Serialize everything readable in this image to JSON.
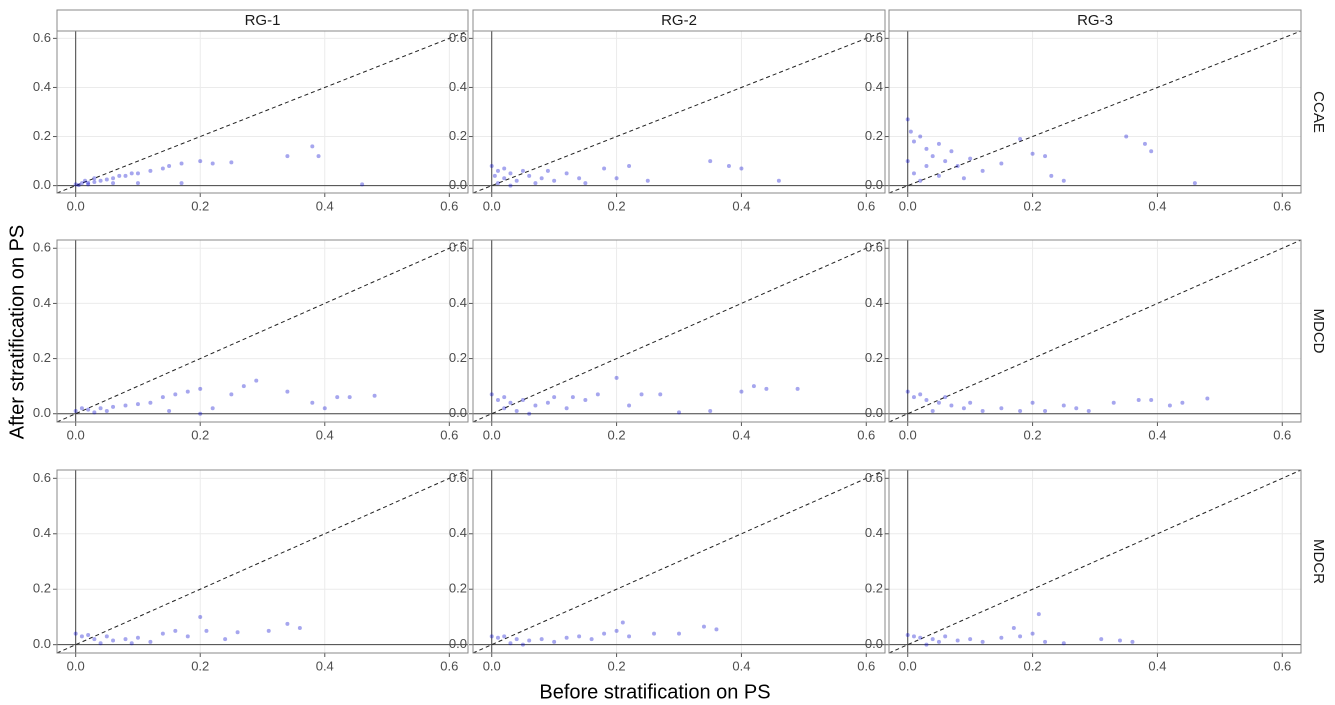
{
  "chart_data": {
    "type": "scatter",
    "xlabel": "Before stratification on PS",
    "ylabel": "After stratification on PS",
    "columns": [
      "RG-1",
      "RG-2",
      "RG-3"
    ],
    "rows": [
      "CCAE",
      "MDCD",
      "MDCR"
    ],
    "color": "#0000cd",
    "grid": true,
    "xlim": [
      -0.03,
      0.63
    ],
    "ylim": [
      -0.03,
      0.63
    ],
    "xticks": [
      {
        "value": 0,
        "label": "0.0"
      },
      0.2,
      0.4,
      0.6
    ],
    "yticks": [
      {
        "value": 0,
        "label": "0.0"
      },
      0.2,
      0.4,
      0.6
    ],
    "panels": [
      {
        "x": [
          0,
          0.01,
          0.02,
          0.03,
          0.04,
          0.05,
          0.06,
          0.07,
          0.08,
          0.09,
          0.1,
          0.12,
          0.14,
          0.15,
          0.17,
          0.2,
          0.22,
          0.25,
          0.34,
          0.38,
          0.39,
          0.46,
          0.1,
          0.17,
          0.005,
          0.02,
          0.06,
          0.03,
          0.015
        ],
        "y": [
          0.005,
          0.01,
          0.012,
          0.015,
          0.02,
          0.025,
          0.03,
          0.04,
          0.04,
          0.05,
          0.05,
          0.06,
          0.07,
          0.08,
          0.09,
          0.1,
          0.09,
          0.095,
          0.12,
          0.16,
          0.12,
          0.005,
          0.01,
          0.01,
          0.002,
          0.005,
          0.01,
          0.03,
          0.02
        ]
      },
      {
        "x": [
          0,
          0.01,
          0.02,
          0.03,
          0.05,
          0.06,
          0.04,
          0.01,
          0.08,
          0.1,
          0.12,
          0.15,
          0.18,
          0.2,
          0.22,
          0.25,
          0.35,
          0.38,
          0.4,
          0.46,
          0.03,
          0.07,
          0.09,
          0.14,
          0.02,
          0.005
        ],
        "y": [
          0.08,
          0.06,
          0.07,
          0.05,
          0.06,
          0.04,
          0.02,
          0.01,
          0.03,
          0.02,
          0.05,
          0.01,
          0.07,
          0.03,
          0.08,
          0.02,
          0.1,
          0.08,
          0.07,
          0.02,
          0,
          0.01,
          0.06,
          0.03,
          0.03,
          0.04
        ]
      },
      {
        "x": [
          0,
          0.005,
          0.01,
          0.02,
          0.03,
          0.04,
          0.05,
          0.06,
          0.07,
          0.08,
          0.1,
          0.12,
          0.15,
          0.18,
          0.2,
          0.22,
          0.23,
          0.25,
          0.35,
          0.38,
          0.39,
          0.46,
          0.01,
          0.02,
          0.03,
          0,
          0.05,
          0.09
        ],
        "y": [
          0.27,
          0.22,
          0.18,
          0.2,
          0.15,
          0.12,
          0.17,
          0.1,
          0.14,
          0.08,
          0.11,
          0.06,
          0.09,
          0.19,
          0.13,
          0.12,
          0.04,
          0.02,
          0.2,
          0.17,
          0.14,
          0.01,
          0.05,
          0.02,
          0.08,
          0.1,
          0.04,
          0.03
        ]
      },
      {
        "x": [
          0,
          0.01,
          0.02,
          0.04,
          0.06,
          0.08,
          0.1,
          0.12,
          0.14,
          0.16,
          0.18,
          0.2,
          0.22,
          0.25,
          0.27,
          0.29,
          0.34,
          0.38,
          0.4,
          0.42,
          0.44,
          0.48,
          0.03,
          0.05,
          0.15,
          0.2
        ],
        "y": [
          0.01,
          0.02,
          0.015,
          0.02,
          0.025,
          0.03,
          0.035,
          0.04,
          0.06,
          0.07,
          0.08,
          0.09,
          0.02,
          0.07,
          0.1,
          0.12,
          0.08,
          0.04,
          0.02,
          0.06,
          0.06,
          0.065,
          0.005,
          0.01,
          0.01,
          0
        ]
      },
      {
        "x": [
          0,
          0.01,
          0.02,
          0.03,
          0.05,
          0.07,
          0.09,
          0.1,
          0.12,
          0.15,
          0.17,
          0.2,
          0.22,
          0.24,
          0.27,
          0.3,
          0.35,
          0.4,
          0.42,
          0.44,
          0.49,
          0.04,
          0.02,
          0.06,
          0.13
        ],
        "y": [
          0.07,
          0.05,
          0.06,
          0.04,
          0.05,
          0.03,
          0.04,
          0.06,
          0.02,
          0.05,
          0.07,
          0.13,
          0.03,
          0.07,
          0.07,
          0.005,
          0.01,
          0.08,
          0.1,
          0.09,
          0.09,
          0.01,
          0.02,
          0,
          0.06
        ]
      },
      {
        "x": [
          0,
          0.01,
          0.02,
          0.03,
          0.05,
          0.07,
          0.09,
          0.1,
          0.12,
          0.15,
          0.18,
          0.2,
          0.22,
          0.25,
          0.27,
          0.29,
          0.33,
          0.37,
          0.39,
          0.42,
          0.44,
          0.48,
          0.04,
          0.06
        ],
        "y": [
          0.08,
          0.06,
          0.07,
          0.05,
          0.04,
          0.03,
          0.02,
          0.04,
          0.01,
          0.02,
          0.01,
          0.04,
          0.01,
          0.03,
          0.02,
          0.01,
          0.04,
          0.05,
          0.05,
          0.03,
          0.04,
          0.055,
          0.01,
          0.06
        ]
      },
      {
        "x": [
          0,
          0.01,
          0.02,
          0.03,
          0.05,
          0.06,
          0.08,
          0.1,
          0.12,
          0.14,
          0.16,
          0.18,
          0.2,
          0.21,
          0.24,
          0.26,
          0.31,
          0.34,
          0.36,
          0.04,
          0.09
        ],
        "y": [
          0.04,
          0.03,
          0.035,
          0.02,
          0.03,
          0.015,
          0.02,
          0.025,
          0.01,
          0.04,
          0.05,
          0.03,
          0.1,
          0.05,
          0.02,
          0.045,
          0.05,
          0.075,
          0.06,
          0.005,
          0.005
        ]
      },
      {
        "x": [
          0,
          0.01,
          0.02,
          0.04,
          0.06,
          0.08,
          0.1,
          0.12,
          0.14,
          0.16,
          0.18,
          0.2,
          0.21,
          0.22,
          0.26,
          0.3,
          0.34,
          0.36,
          0.03,
          0.05
        ],
        "y": [
          0.03,
          0.025,
          0.03,
          0.02,
          0.015,
          0.02,
          0.01,
          0.025,
          0.03,
          0.02,
          0.04,
          0.05,
          0.08,
          0.03,
          0.04,
          0.04,
          0.065,
          0.055,
          0.005,
          0
        ]
      },
      {
        "x": [
          0,
          0.01,
          0.02,
          0.04,
          0.06,
          0.08,
          0.1,
          0.12,
          0.15,
          0.17,
          0.18,
          0.2,
          0.21,
          0.22,
          0.25,
          0.31,
          0.34,
          0.36,
          0.03,
          0.05
        ],
        "y": [
          0.035,
          0.03,
          0.025,
          0.02,
          0.03,
          0.015,
          0.02,
          0.01,
          0.025,
          0.06,
          0.03,
          0.04,
          0.11,
          0.01,
          0.005,
          0.02,
          0.015,
          0.01,
          0,
          0.01
        ]
      }
    ]
  }
}
